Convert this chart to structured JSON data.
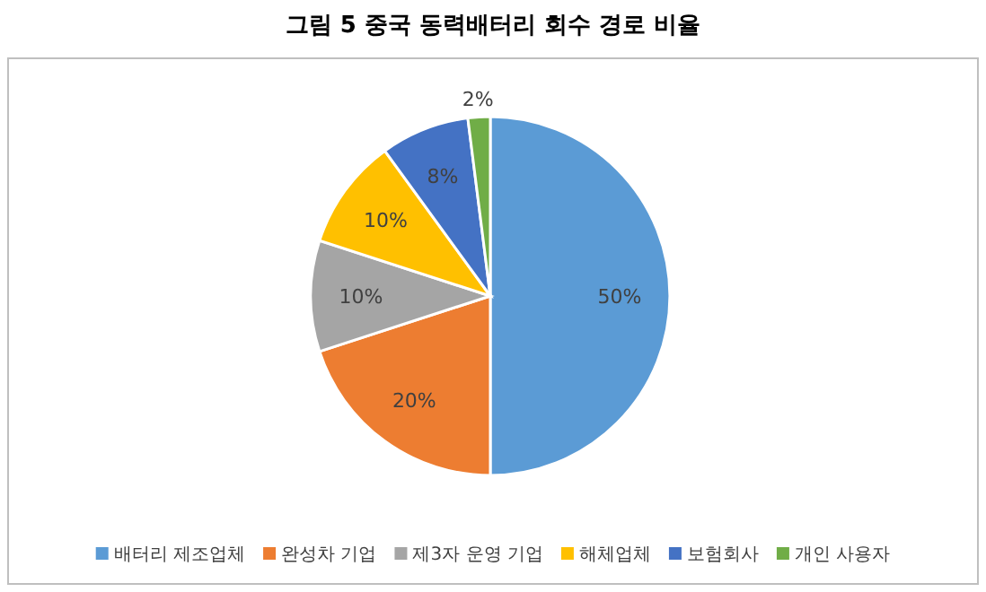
{
  "chart_data": {
    "type": "pie",
    "title": "그림 5 중국 동력배터리 회수 경로 비율",
    "categories": [
      "배터리 제조업체",
      "완성차 기업",
      "제3자 운영 기업",
      "해체업체",
      "보험회사",
      "개인 사용자"
    ],
    "values": [
      50,
      20,
      10,
      10,
      8,
      2
    ],
    "value_labels": [
      "50%",
      "20%",
      "10%",
      "10%",
      "8%",
      "2%"
    ],
    "colors": [
      "#5b9bd5",
      "#ed7d31",
      "#a5a5a5",
      "#ffc000",
      "#4472c4",
      "#70ad47"
    ],
    "legend": "bottom"
  }
}
